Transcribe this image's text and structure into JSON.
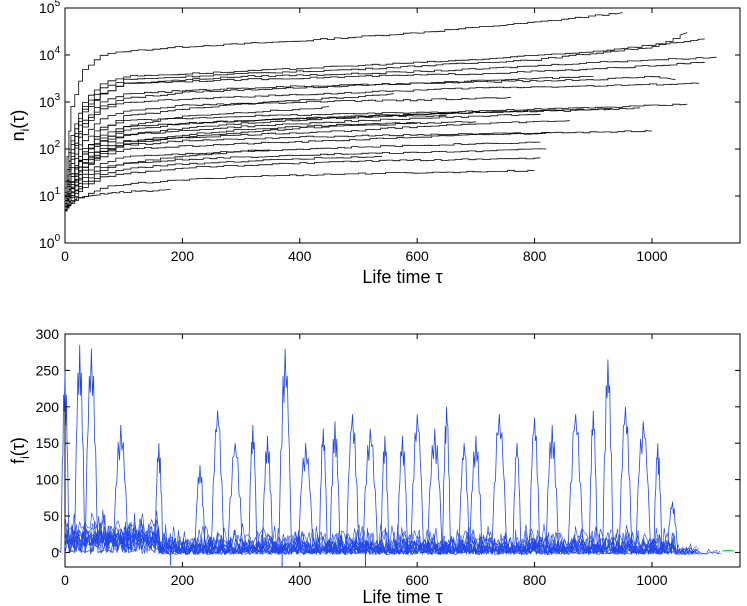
{
  "chart_data": [
    {
      "type": "line",
      "title": "",
      "xlabel": "Life time τ",
      "ylabel": "n_i(τ)",
      "ylabel_parts": {
        "main": "n",
        "sub": "i",
        "rest": "(τ)"
      },
      "yscale": "log",
      "xlim": [
        0,
        1150
      ],
      "ylim": [
        1,
        100000
      ],
      "xticks": [
        0,
        200,
        400,
        600,
        800,
        1000
      ],
      "yticks": [
        {
          "value": 1,
          "base": "10",
          "exp": "0"
        },
        {
          "value": 10,
          "base": "10",
          "exp": "1"
        },
        {
          "value": 100,
          "base": "10",
          "exp": "2"
        },
        {
          "value": 1000,
          "base": "10",
          "exp": "3"
        },
        {
          "value": 10000,
          "base": "10",
          "exp": "4"
        },
        {
          "value": 100000,
          "base": "10",
          "exp": "5"
        }
      ],
      "line_color": "#000000",
      "series": [
        {
          "x": [
            0,
            10,
            30,
            60,
            100,
            200,
            400,
            600,
            800,
            950
          ],
          "values": [
            20,
            800,
            5000,
            10000,
            12000,
            15000,
            20000,
            30000,
            50000,
            80000
          ]
        },
        {
          "x": [
            0,
            10,
            30,
            60,
            100,
            300,
            500,
            800,
            1000,
            1060
          ],
          "values": [
            8,
            150,
            800,
            2000,
            3000,
            4000,
            5000,
            8000,
            15000,
            30000
          ]
        },
        {
          "x": [
            0,
            10,
            30,
            60,
            100,
            300,
            500,
            700,
            900,
            1110
          ],
          "values": [
            10,
            100,
            600,
            1500,
            2500,
            3500,
            4000,
            5000,
            7000,
            9000
          ]
        },
        {
          "x": [
            0,
            10,
            30,
            60,
            100,
            300,
            500,
            700,
            900,
            1090
          ],
          "values": [
            15,
            200,
            1000,
            2500,
            3500,
            4500,
            6000,
            8000,
            12000,
            22000
          ]
        },
        {
          "x": [
            0,
            10,
            30,
            60,
            100,
            300,
            500,
            700,
            900,
            1090
          ],
          "values": [
            12,
            120,
            700,
            1500,
            2500,
            3000,
            3500,
            4000,
            5000,
            7000
          ]
        },
        {
          "x": [
            0,
            10,
            30,
            60,
            100,
            300,
            600,
            900,
            1000,
            1040
          ],
          "values": [
            10,
            80,
            400,
            1000,
            1500,
            2000,
            2500,
            3000,
            3500,
            3000
          ]
        },
        {
          "x": [
            0,
            10,
            30,
            60,
            100,
            300,
            500,
            700,
            900,
            1080
          ],
          "values": [
            10,
            60,
            300,
            700,
            1000,
            1300,
            1600,
            2000,
            2200,
            2500
          ]
        },
        {
          "x": [
            0,
            10,
            30,
            60,
            100,
            300,
            600,
            800,
            950,
            1060
          ],
          "values": [
            6,
            40,
            150,
            300,
            400,
            500,
            600,
            700,
            800,
            900
          ]
        },
        {
          "x": [
            0,
            10,
            30,
            60,
            100,
            300,
            500,
            700,
            850,
            930
          ],
          "values": [
            5,
            30,
            100,
            200,
            300,
            400,
            500,
            600,
            650,
            700
          ]
        },
        {
          "x": [
            0,
            10,
            30,
            60,
            100,
            300,
            500,
            600,
            700,
            810
          ],
          "values": [
            8,
            30,
            80,
            150,
            200,
            300,
            400,
            450,
            500,
            550
          ]
        },
        {
          "x": [
            0,
            10,
            30,
            60,
            100,
            300,
            500,
            600,
            700,
            860
          ],
          "values": [
            7,
            20,
            60,
            100,
            150,
            200,
            250,
            300,
            350,
            400
          ]
        },
        {
          "x": [
            0,
            10,
            30,
            60,
            100,
            300,
            450,
            600,
            700,
            830
          ],
          "values": [
            6,
            15,
            40,
            70,
            100,
            130,
            150,
            180,
            200,
            220
          ]
        },
        {
          "x": [
            0,
            10,
            30,
            60,
            100,
            300,
            500,
            600,
            700,
            810
          ],
          "values": [
            5,
            12,
            30,
            50,
            70,
            90,
            110,
            120,
            130,
            140
          ]
        },
        {
          "x": [
            0,
            10,
            30,
            60,
            100,
            200,
            400,
            600,
            700,
            820
          ],
          "values": [
            5,
            10,
            25,
            40,
            50,
            60,
            75,
            85,
            90,
            100
          ]
        },
        {
          "x": [
            0,
            10,
            30,
            60,
            100,
            200,
            400,
            500,
            700,
            810
          ],
          "values": [
            5,
            8,
            15,
            25,
            30,
            40,
            50,
            55,
            60,
            65
          ]
        },
        {
          "x": [
            0,
            10,
            30,
            60,
            100,
            200,
            300,
            500,
            650,
            800
          ],
          "values": [
            5,
            7,
            10,
            15,
            18,
            22,
            26,
            30,
            32,
            35
          ]
        },
        {
          "x": [
            0,
            10,
            30,
            60,
            100,
            200,
            300,
            400,
            500,
            650
          ],
          "values": [
            6,
            15,
            50,
            120,
            200,
            280,
            350,
            420,
            480,
            520
          ]
        },
        {
          "x": [
            0,
            10,
            30,
            60,
            100,
            200,
            300,
            400,
            500,
            600
          ],
          "values": [
            6,
            12,
            35,
            80,
            130,
            180,
            230,
            280,
            320,
            350
          ]
        },
        {
          "x": [
            0,
            10,
            30,
            60,
            100,
            200,
            300,
            400,
            500,
            560
          ],
          "values": [
            8,
            25,
            90,
            250,
            500,
            700,
            900,
            1100,
            1300,
            1500
          ]
        },
        {
          "x": [
            0,
            10,
            30,
            60,
            100,
            150,
            200,
            300,
            400,
            450
          ],
          "values": [
            7,
            20,
            60,
            150,
            300,
            400,
            500,
            600,
            700,
            800
          ]
        },
        {
          "x": [
            0,
            10,
            30,
            60,
            100,
            150,
            200,
            250,
            300,
            350
          ],
          "values": [
            5,
            10,
            20,
            35,
            50,
            60,
            70,
            80,
            90,
            95
          ]
        },
        {
          "x": [
            0,
            10,
            20,
            40,
            60,
            80,
            100,
            120,
            150,
            180
          ],
          "values": [
            5,
            7,
            9,
            10,
            11,
            12,
            12,
            13,
            13,
            14
          ]
        },
        {
          "x": [
            0,
            10,
            30,
            60,
            100,
            200,
            400,
            600,
            750,
            900
          ],
          "values": [
            10,
            70,
            350,
            800,
            1200,
            1600,
            2000,
            2500,
            3000,
            3500
          ]
        },
        {
          "x": [
            0,
            10,
            30,
            60,
            100,
            200,
            400,
            600,
            700,
            760
          ],
          "values": [
            9,
            50,
            200,
            450,
            650,
            850,
            1000,
            1100,
            1200,
            1250
          ]
        },
        {
          "x": [
            0,
            10,
            30,
            60,
            100,
            200,
            400,
            600,
            800,
            1000
          ],
          "values": [
            6,
            18,
            50,
            90,
            120,
            150,
            180,
            200,
            220,
            240
          ]
        },
        {
          "x": [
            0,
            10,
            30,
            60,
            100,
            200,
            400,
            600,
            800,
            980
          ],
          "values": [
            7,
            25,
            80,
            170,
            250,
            350,
            450,
            550,
            650,
            750
          ]
        },
        {
          "x": [
            0,
            10,
            30,
            60,
            100,
            200,
            300,
            400,
            500,
            540
          ],
          "values": [
            5,
            9,
            18,
            28,
            38,
            48,
            55,
            62,
            68,
            70
          ]
        },
        {
          "x": [
            0,
            10,
            30,
            60,
            100,
            200,
            300,
            400,
            500,
            700
          ],
          "values": [
            6,
            14,
            40,
            90,
            140,
            200,
            260,
            300,
            340,
            380
          ]
        }
      ]
    },
    {
      "type": "line",
      "title": "",
      "xlabel": "Life time τ",
      "ylabel": "f_i(τ)",
      "ylabel_parts": {
        "main": "f",
        "sub": "i",
        "rest": "(τ)"
      },
      "xlim": [
        0,
        1150
      ],
      "ylim": [
        -20,
        300
      ],
      "xticks": [
        0,
        200,
        400,
        600,
        800,
        1000
      ],
      "yticks": [
        0,
        50,
        100,
        150,
        200,
        250,
        300
      ],
      "line_color": "#1f46e8",
      "accent_color": "#00e060",
      "spikes": [
        {
          "x": 0,
          "peak": 250
        },
        {
          "x": 25,
          "peak": 285
        },
        {
          "x": 45,
          "peak": 280
        },
        {
          "x": 95,
          "peak": 175
        },
        {
          "x": 160,
          "peak": 150
        },
        {
          "x": 230,
          "peak": 120
        },
        {
          "x": 260,
          "peak": 195
        },
        {
          "x": 290,
          "peak": 150
        },
        {
          "x": 320,
          "peak": 175
        },
        {
          "x": 345,
          "peak": 160
        },
        {
          "x": 375,
          "peak": 280
        },
        {
          "x": 410,
          "peak": 150
        },
        {
          "x": 440,
          "peak": 170
        },
        {
          "x": 460,
          "peak": 180
        },
        {
          "x": 490,
          "peak": 190
        },
        {
          "x": 520,
          "peak": 170
        },
        {
          "x": 545,
          "peak": 160
        },
        {
          "x": 575,
          "peak": 160
        },
        {
          "x": 600,
          "peak": 190
        },
        {
          "x": 630,
          "peak": 170
        },
        {
          "x": 650,
          "peak": 200
        },
        {
          "x": 680,
          "peak": 150
        },
        {
          "x": 700,
          "peak": 160
        },
        {
          "x": 740,
          "peak": 190
        },
        {
          "x": 770,
          "peak": 150
        },
        {
          "x": 800,
          "peak": 185
        },
        {
          "x": 830,
          "peak": 175
        },
        {
          "x": 870,
          "peak": 190
        },
        {
          "x": 900,
          "peak": 195
        },
        {
          "x": 925,
          "peak": 265
        },
        {
          "x": 955,
          "peak": 200
        },
        {
          "x": 985,
          "peak": 180
        },
        {
          "x": 1010,
          "peak": 150
        },
        {
          "x": 1035,
          "peak": 70
        }
      ],
      "noise_bands": [
        {
          "end": 1040,
          "level": 45
        },
        {
          "end": 1080,
          "level": 22
        },
        {
          "end": 1120,
          "level": 12
        }
      ],
      "dips": [
        {
          "x": 180,
          "value": -18
        },
        {
          "x": 370,
          "value": -20
        },
        {
          "x": 512,
          "value": -20
        }
      ],
      "tail": {
        "x": [
          1120,
          1130,
          1140
        ],
        "values": [
          2,
          3,
          2
        ]
      }
    }
  ]
}
